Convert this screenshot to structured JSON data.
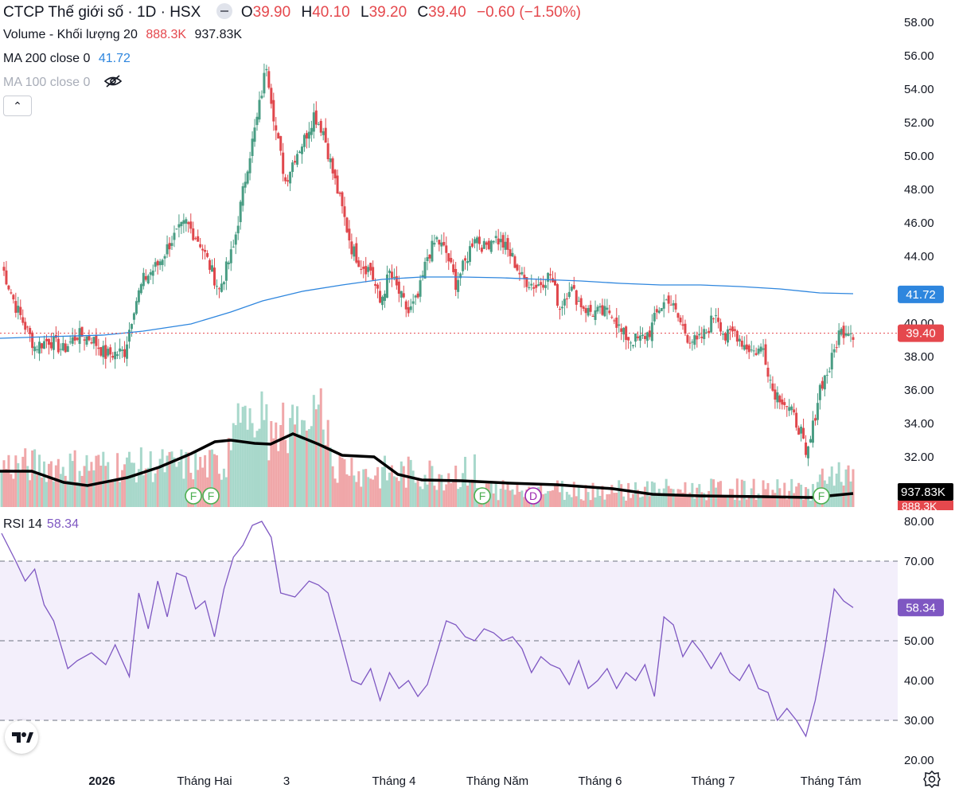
{
  "header": {
    "symbol": "CTCP Thế giới số · 1D · HSX",
    "open_label": "O",
    "open": "39.90",
    "high_label": "H",
    "high": "40.10",
    "low_label": "L",
    "low": "39.20",
    "close_label": "C",
    "close": "39.40",
    "change": "−0.60 (−1.50%)"
  },
  "volume_legend": {
    "label": "Volume - Khối lượng 20",
    "value1": "888.3K",
    "value2": "937.83K"
  },
  "ma200_legend": {
    "label": "MA 200 close 0",
    "value": "41.72"
  },
  "ma100_legend": {
    "label": "MA 100 close 0",
    "hidden_icon": "eye-off-icon"
  },
  "rsi_legend": {
    "label": "RSI 14",
    "value": "58.34"
  },
  "badges": {
    "ma200_value": "41.72",
    "last_price": "39.40",
    "volume_ma": "937.83K",
    "volume_cur": "888.3K",
    "rsi_value": "58.34"
  },
  "colors": {
    "up": "#26a69a",
    "down": "#ef5350",
    "up_candle": "#4a9d84",
    "down_candle": "#e0474c",
    "ma200": "#2e86de",
    "rsi": "#7e57c2",
    "rsi_band": "#f3effb"
  },
  "icons": [
    "chevron-up-icon",
    "eye-off-icon",
    "tradingview-logo-icon",
    "settings-gear-icon",
    "mode-toggle-icon"
  ],
  "chart_data": {
    "type": "candlestick",
    "price_axis": {
      "ticks": [
        "58.00",
        "56.00",
        "54.00",
        "52.00",
        "50.00",
        "48.00",
        "46.00",
        "44.00",
        "42.00",
        "40.00",
        "38.00",
        "36.00",
        "34.00",
        "32.00"
      ],
      "range": [
        30.7,
        58.5
      ]
    },
    "rsi_axis": {
      "ticks": [
        "80.00",
        "70.00",
        "50.00",
        "40.00",
        "30.00",
        "20.00"
      ],
      "range": [
        17.8,
        81
      ],
      "bands": [
        30,
        50,
        70
      ]
    },
    "x_labels": [
      "2026",
      "Tháng Hai",
      "3",
      "Tháng 4",
      "Tháng Năm",
      "Tháng 6",
      "Tháng 7",
      "Tháng Tám"
    ],
    "events": [
      {
        "label": "F",
        "kind": "dividend-f"
      },
      {
        "label": "F",
        "kind": "dividend-f"
      },
      {
        "label": "F",
        "kind": "dividend-f"
      },
      {
        "label": "D",
        "kind": "dividend-d"
      },
      {
        "label": "F",
        "kind": "dividend-f"
      }
    ],
    "series": [
      {
        "name": "MA 200 close 0",
        "last": 41.72
      },
      {
        "name": "Volume - Khối lượng 20",
        "last": 937.83
      },
      {
        "name": "RSI 14",
        "last": 58.34
      }
    ],
    "ohlc_keyframes": [
      [
        0,
        43.5
      ],
      [
        6,
        41.0
      ],
      [
        14,
        38.6
      ],
      [
        20,
        39.0
      ],
      [
        26,
        38.4
      ],
      [
        32,
        39.3
      ],
      [
        38,
        39.1
      ],
      [
        44,
        38.1
      ],
      [
        52,
        38.3
      ],
      [
        56,
        41.0
      ],
      [
        60,
        42.6
      ],
      [
        66,
        43.5
      ],
      [
        72,
        45.0
      ],
      [
        78,
        46.0
      ],
      [
        84,
        44.8
      ],
      [
        92,
        42.0
      ],
      [
        98,
        44.5
      ],
      [
        104,
        49.5
      ],
      [
        108,
        52.2
      ],
      [
        112,
        55.5
      ],
      [
        116,
        51.5
      ],
      [
        120,
        48.5
      ],
      [
        124,
        50.0
      ],
      [
        128,
        51.0
      ],
      [
        132,
        52.5
      ],
      [
        136,
        51.5
      ],
      [
        140,
        49.0
      ],
      [
        144,
        46.8
      ],
      [
        148,
        44.5
      ],
      [
        152,
        43.5
      ],
      [
        156,
        43.2
      ],
      [
        160,
        41.2
      ],
      [
        164,
        43.0
      ],
      [
        168,
        41.8
      ],
      [
        172,
        40.6
      ],
      [
        176,
        41.5
      ],
      [
        180,
        44.0
      ],
      [
        184,
        45.0
      ],
      [
        188,
        44.2
      ],
      [
        192,
        42.4
      ],
      [
        196,
        43.6
      ],
      [
        200,
        45.3
      ],
      [
        204,
        44.5
      ],
      [
        208,
        45.2
      ],
      [
        212,
        44.7
      ],
      [
        216,
        43.9
      ],
      [
        220,
        42.7
      ],
      [
        226,
        42.2
      ],
      [
        232,
        42.9
      ],
      [
        236,
        40.9
      ],
      [
        240,
        42.2
      ],
      [
        244,
        41.3
      ],
      [
        248,
        40.7
      ],
      [
        254,
        40.6
      ],
      [
        258,
        40.7
      ],
      [
        262,
        39.4
      ],
      [
        266,
        39.0
      ],
      [
        270,
        39.0
      ],
      [
        274,
        39.5
      ],
      [
        278,
        40.9
      ],
      [
        282,
        41.5
      ],
      [
        286,
        40.3
      ],
      [
        290,
        39.2
      ],
      [
        294,
        38.8
      ],
      [
        298,
        39.5
      ],
      [
        302,
        40.7
      ],
      [
        306,
        39.1
      ],
      [
        310,
        39.5
      ],
      [
        314,
        38.7
      ],
      [
        318,
        38.3
      ],
      [
        322,
        38.5
      ],
      [
        326,
        36.0
      ],
      [
        330,
        35.5
      ],
      [
        334,
        34.6
      ],
      [
        338,
        33.5
      ],
      [
        340,
        31.8
      ],
      [
        342,
        33.0
      ],
      [
        346,
        36.2
      ],
      [
        350,
        37.3
      ],
      [
        354,
        39.4
      ],
      [
        358,
        39.7
      ],
      [
        360,
        39.4
      ]
    ]
  }
}
